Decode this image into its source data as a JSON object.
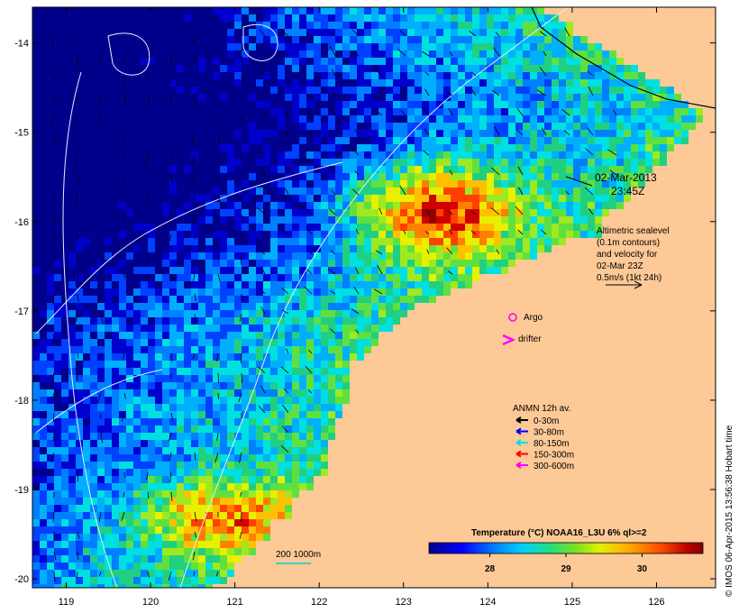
{
  "map": {
    "lon_ticks": [
      "119",
      "120",
      "121",
      "122",
      "123",
      "124",
      "125",
      "126"
    ],
    "lat_ticks": [
      "-14",
      "-15",
      "-16",
      "-17",
      "-18",
      "-19",
      "-20"
    ],
    "lon_range": [
      118.6,
      126.7
    ],
    "lat_range": [
      -20.1,
      -13.6
    ]
  },
  "annotations": {
    "datetime_line1": "02-Mar-2013",
    "datetime_line2": "23:45Z",
    "altimetry": [
      "Altimetric sealevel",
      "(0.1m contours)",
      "and velocity for",
      "02-Mar 23Z",
      "0.5m/s (1kt 24h)"
    ],
    "argo_label": "Argo",
    "drifter_label": "drifter",
    "scale_label": "200  1000m"
  },
  "legend": {
    "title": "ANMN 12h av.",
    "items": [
      {
        "label": "0-30m",
        "color": "#000000"
      },
      {
        "label": "30-80m",
        "color": "#0000ff"
      },
      {
        "label": "80-150m",
        "color": "#00e0e0"
      },
      {
        "label": "150-300m",
        "color": "#ff0000"
      },
      {
        "label": "300-600m",
        "color": "#ff00ff"
      }
    ]
  },
  "colorbar": {
    "title": "Temperature (°C) NOAA16_L3U 6% ql>=2",
    "ticks": [
      "28",
      "29",
      "30"
    ],
    "tick_values": [
      28,
      29,
      30
    ],
    "vmin": 27.2,
    "vmax": 30.8
  },
  "credit": "© IMOS 06-Apr-2015 13:56:38 Hobart time",
  "colors": {
    "land": "#fdc996",
    "frame": "#000000"
  }
}
